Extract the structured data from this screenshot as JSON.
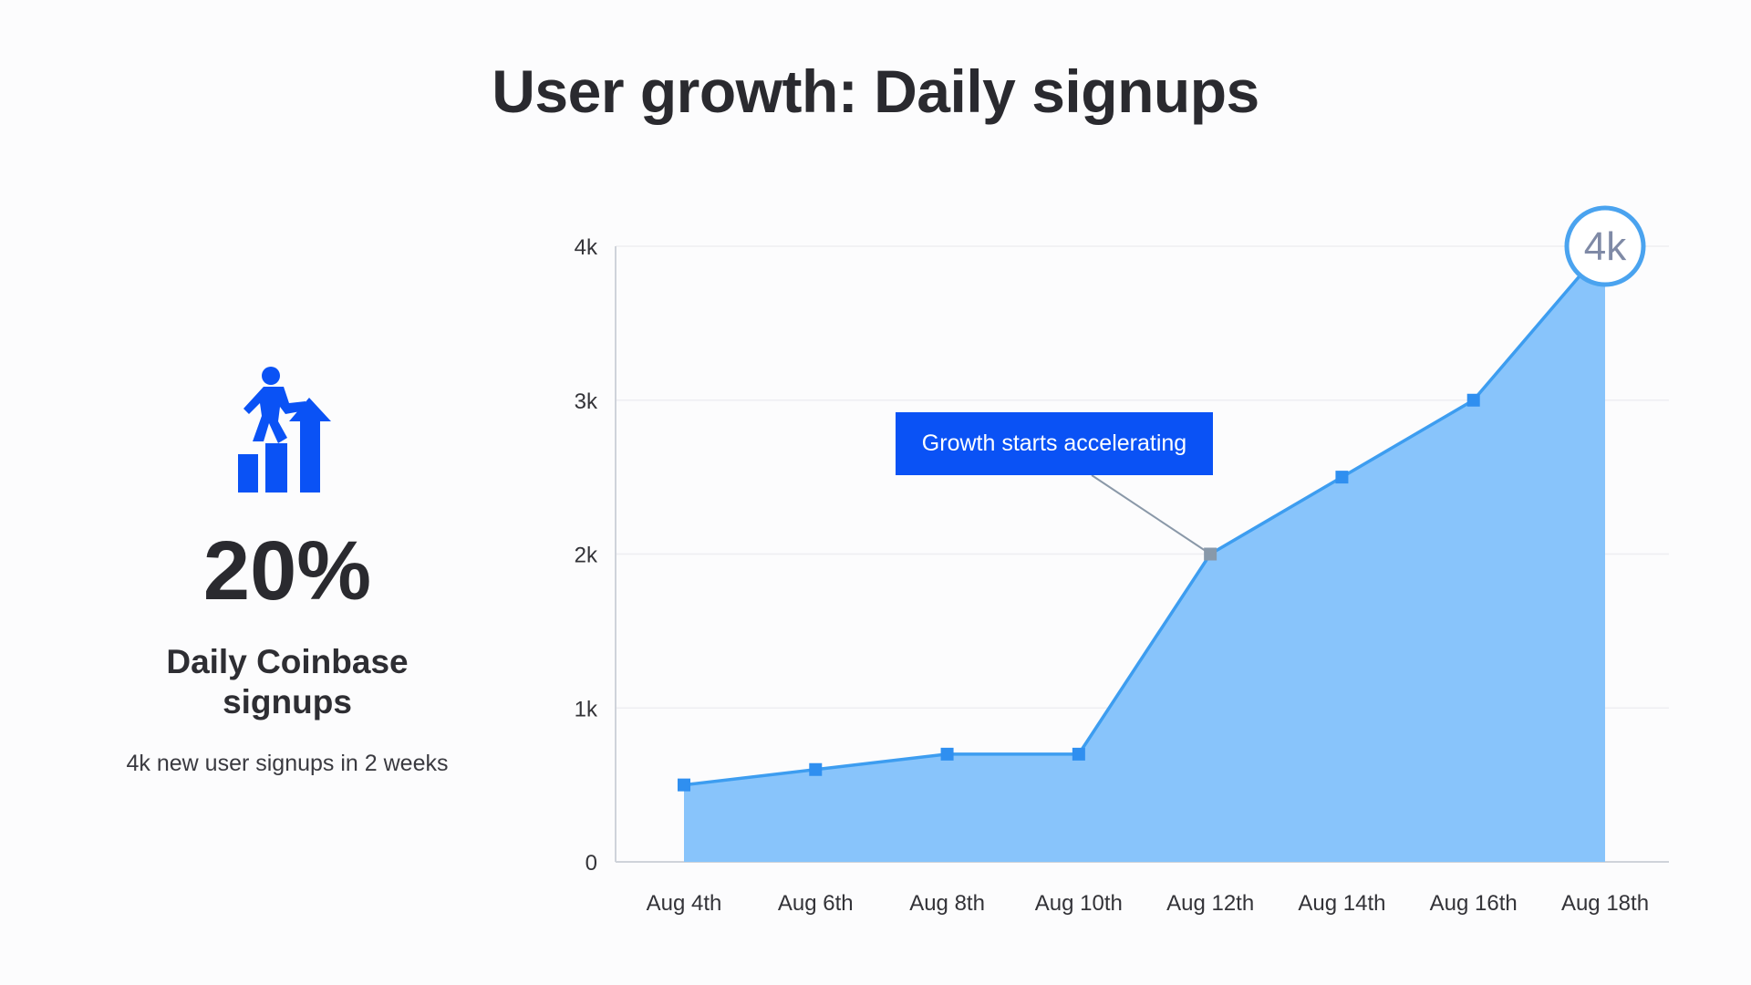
{
  "title": "User growth: Daily signups",
  "kpi": {
    "value": "20%",
    "label": "Daily Coinbase signups",
    "subtext": "4k new user signups in 2 weeks",
    "icon": "person-climbing-growth-chart-icon",
    "icon_color": "#0a52f5"
  },
  "chart_data": {
    "type": "area",
    "categories": [
      "Aug 4th",
      "Aug 6th",
      "Aug 8th",
      "Aug 10th",
      "Aug 12th",
      "Aug 14th",
      "Aug 16th",
      "Aug 18th"
    ],
    "values": [
      500,
      600,
      700,
      700,
      2000,
      2500,
      3000,
      4000
    ],
    "ylim": [
      0,
      4000
    ],
    "yticks": [
      0,
      1000,
      2000,
      3000,
      4000
    ],
    "ytick_labels": [
      "0",
      "1k",
      "2k",
      "3k",
      "4k"
    ],
    "grid": true,
    "fill_color": "#88c4fb",
    "line_color": "#3d9df0",
    "marker_color": "#2f8ff0",
    "annotations": [
      {
        "text": "Growth starts accelerating",
        "category": "Aug 12th",
        "value": 2000,
        "box_color": "#0a52f5",
        "marker_color": "#8899aa"
      },
      {
        "text": "4k",
        "category": "Aug 18th",
        "value": 4000,
        "style": "circle",
        "circle_color": "#4aa3ef"
      }
    ]
  }
}
